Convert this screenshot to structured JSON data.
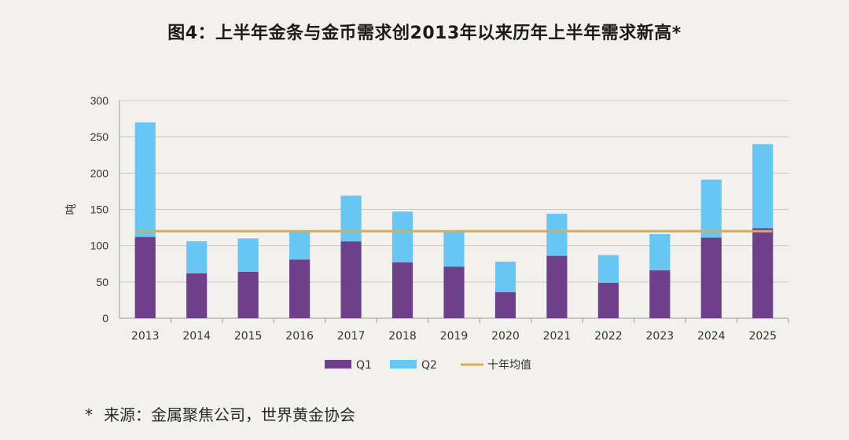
{
  "title": "图4：上半年金条与金币需求创2013年以来历年上半年需求新高*",
  "source": {
    "marker": "*",
    "text": "来源：金属聚焦公司，世界黄金协会"
  },
  "chart_data": {
    "type": "bar",
    "stacked": true,
    "title": "图4：上半年金条与金币需求创2013年以来历年上半年需求新高*",
    "xlabel": "",
    "ylabel": "吨",
    "ylim": [
      0,
      300
    ],
    "yticks": [
      0,
      50,
      100,
      150,
      200,
      250,
      300
    ],
    "grid": true,
    "legend_position": "bottom",
    "categories": [
      "2013",
      "2014",
      "2015",
      "2016",
      "2017",
      "2018",
      "2019",
      "2020",
      "2021",
      "2022",
      "2023",
      "2024",
      "2025"
    ],
    "series": [
      {
        "name": "Q1",
        "color": "#6e4089",
        "values": [
          112,
          62,
          64,
          81,
          106,
          77,
          71,
          36,
          86,
          49,
          66,
          111,
          124
        ]
      },
      {
        "name": "Q2",
        "color": "#67c6f2",
        "values": [
          158,
          44,
          46,
          40,
          63,
          70,
          49,
          42,
          58,
          38,
          50,
          80,
          116
        ]
      }
    ],
    "reference_line": {
      "name": "十年均值",
      "color": "#d8ad52",
      "value": 120
    }
  }
}
